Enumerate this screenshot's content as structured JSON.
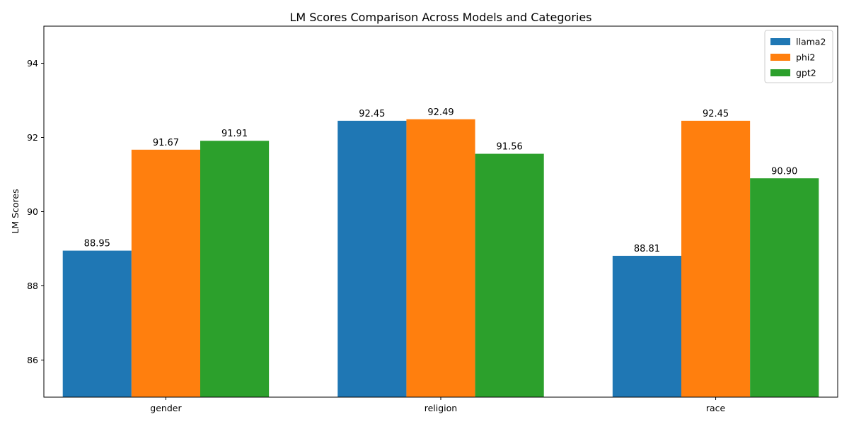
{
  "chart_data": {
    "type": "bar",
    "title": "LM Scores Comparison Across Models and Categories",
    "xlabel": "",
    "ylabel": "LM Scores",
    "categories": [
      "gender",
      "religion",
      "race"
    ],
    "series": [
      {
        "name": "llama2",
        "values": [
          88.95,
          92.45,
          88.81
        ],
        "labels": [
          "88.95",
          "92.45",
          "88.81"
        ],
        "color": "#1f77b4"
      },
      {
        "name": "phi2",
        "values": [
          91.67,
          92.49,
          92.45
        ],
        "labels": [
          "91.67",
          "92.49",
          "92.45"
        ],
        "color": "#ff7f0e"
      },
      {
        "name": "gpt2",
        "values": [
          91.91,
          91.56,
          90.9
        ],
        "labels": [
          "91.91",
          "91.56",
          "90.90"
        ],
        "color": "#2ca02c"
      }
    ],
    "ylim": [
      85,
      95
    ],
    "yticks": [
      86,
      88,
      90,
      92,
      94
    ],
    "ytick_labels": [
      "86",
      "88",
      "90",
      "92",
      "94"
    ],
    "grid": false,
    "legend_position": "top-right"
  }
}
